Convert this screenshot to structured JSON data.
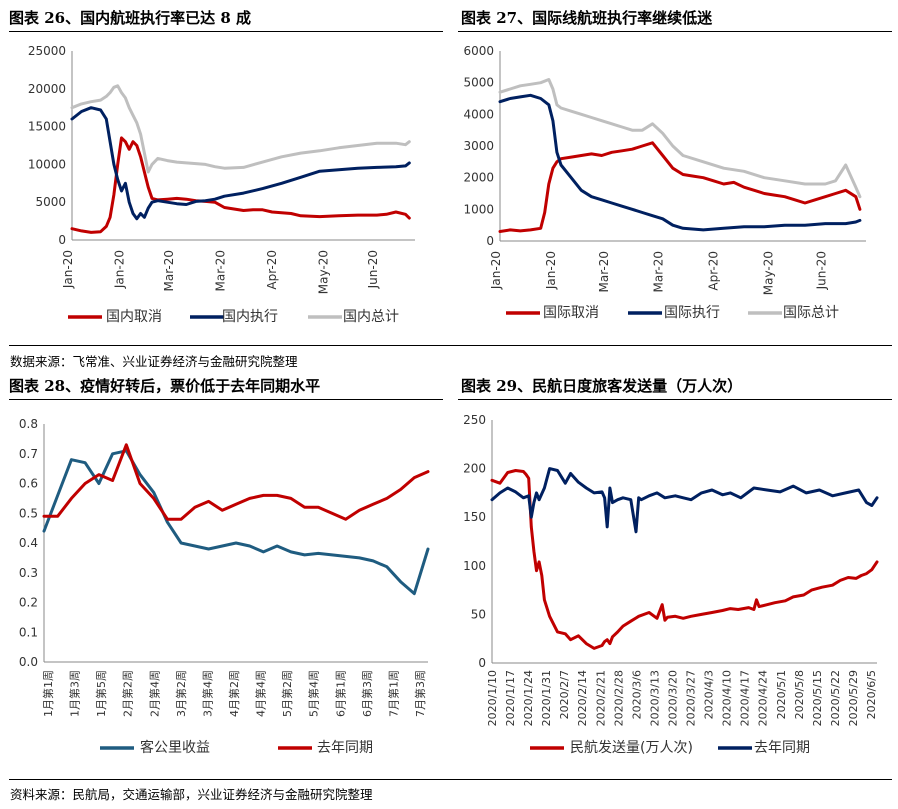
{
  "panels": [
    {
      "title": "图表 26、国内航班执行率已达 8 成"
    },
    {
      "title": "图表 27、国际线航班执行率继续低迷"
    },
    {
      "title": "图表 28、疫情好转后，票价低于去年同期水平"
    },
    {
      "title": "图表 29、民航日度旅客发送量（万人次）"
    }
  ],
  "sources": {
    "top": "数据来源：飞常准、兴业证券经济与金融研究院整理",
    "bottom": "资料来源：民航局，交通运输部，兴业证券经济与金融研究院整理"
  },
  "colors": {
    "red": "#C00000",
    "navy": "#002060",
    "gray": "#BFBFBF",
    "teal": "#1F5C80"
  },
  "chart_data": [
    {
      "type": "line",
      "xticks": [
        "Jan-20",
        "Jan-20",
        "Mar-20",
        "Mar-20",
        "Apr-20",
        "May-20",
        "Jun-20"
      ],
      "ylim": [
        0,
        25000
      ],
      "yticks": [
        "0",
        "5000",
        "10000",
        "15000",
        "20000",
        "25000"
      ],
      "xrange": [
        0,
        180
      ],
      "xtick_pos": [
        0,
        27,
        53,
        80,
        107,
        134,
        160
      ],
      "series": [
        {
          "name": "国内取消",
          "color": "#C00000",
          "x": [
            0,
            5,
            10,
            15,
            18,
            20,
            22,
            24,
            26,
            28,
            30,
            32,
            34,
            36,
            38,
            40,
            42,
            45,
            50,
            55,
            60,
            65,
            70,
            75,
            80,
            85,
            90,
            95,
            100,
            105,
            110,
            115,
            120,
            130,
            140,
            150,
            160,
            165,
            170,
            175,
            177
          ],
          "values": [
            1500,
            1200,
            1000,
            1100,
            1800,
            3000,
            6000,
            10000,
            13500,
            13000,
            12000,
            13000,
            12500,
            11000,
            9000,
            7000,
            5500,
            5300,
            5400,
            5500,
            5400,
            5200,
            5100,
            5000,
            4300,
            4100,
            3900,
            4000,
            4000,
            3700,
            3600,
            3500,
            3200,
            3100,
            3200,
            3300,
            3300,
            3400,
            3700,
            3400,
            2900
          ]
        },
        {
          "name": "国内执行",
          "color": "#002060",
          "x": [
            0,
            5,
            10,
            15,
            18,
            20,
            22,
            24,
            26,
            28,
            30,
            32,
            34,
            36,
            38,
            40,
            42,
            45,
            50,
            55,
            60,
            65,
            70,
            75,
            80,
            90,
            100,
            110,
            120,
            130,
            140,
            150,
            160,
            170,
            175,
            177
          ],
          "values": [
            16000,
            17000,
            17500,
            17200,
            16000,
            13000,
            10000,
            8000,
            6500,
            7500,
            5000,
            3500,
            2800,
            3500,
            3000,
            4200,
            5000,
            5200,
            5000,
            4800,
            4700,
            5100,
            5200,
            5400,
            5800,
            6200,
            6800,
            7500,
            8300,
            9100,
            9300,
            9500,
            9600,
            9700,
            9800,
            10200
          ]
        },
        {
          "name": "国内总计",
          "color": "#BFBFBF",
          "x": [
            0,
            5,
            10,
            15,
            18,
            20,
            22,
            24,
            26,
            28,
            30,
            32,
            34,
            36,
            38,
            40,
            42,
            45,
            50,
            55,
            60,
            65,
            70,
            75,
            80,
            90,
            100,
            110,
            120,
            130,
            140,
            150,
            160,
            170,
            175,
            177
          ],
          "values": [
            17500,
            18000,
            18300,
            18500,
            19000,
            19500,
            20200,
            20400,
            19500,
            18800,
            17500,
            16500,
            15500,
            14000,
            11500,
            9000,
            10000,
            10800,
            10500,
            10300,
            10200,
            10100,
            10000,
            9700,
            9500,
            9600,
            10300,
            11000,
            11500,
            11800,
            12200,
            12500,
            12800,
            12800,
            12600,
            13000
          ]
        }
      ]
    },
    {
      "type": "line",
      "xticks": [
        "Jan-20",
        "Jan-20",
        "Mar-20",
        "Mar-20",
        "Apr-20",
        "May-20",
        "Jun-20"
      ],
      "ylim": [
        0,
        6000
      ],
      "yticks": [
        "0",
        "1000",
        "2000",
        "3000",
        "4000",
        "5000",
        "6000"
      ],
      "xrange": [
        0,
        180
      ],
      "xtick_pos": [
        0,
        27,
        53,
        80,
        107,
        134,
        160
      ],
      "series": [
        {
          "name": "国际取消",
          "color": "#C00000",
          "x": [
            0,
            5,
            10,
            15,
            20,
            22,
            24,
            26,
            28,
            30,
            35,
            40,
            45,
            50,
            55,
            60,
            65,
            70,
            75,
            80,
            85,
            90,
            95,
            100,
            105,
            110,
            115,
            120,
            125,
            130,
            135,
            140,
            145,
            150,
            155,
            160,
            165,
            170,
            175,
            177
          ],
          "values": [
            300,
            350,
            320,
            350,
            400,
            900,
            1800,
            2300,
            2500,
            2600,
            2650,
            2700,
            2750,
            2700,
            2800,
            2850,
            2900,
            3000,
            3100,
            2700,
            2300,
            2100,
            2050,
            2000,
            1900,
            1800,
            1850,
            1700,
            1600,
            1500,
            1450,
            1400,
            1300,
            1200,
            1300,
            1400,
            1500,
            1600,
            1400,
            1000
          ]
        },
        {
          "name": "国际执行",
          "color": "#002060",
          "x": [
            0,
            5,
            10,
            15,
            20,
            24,
            26,
            28,
            30,
            35,
            40,
            45,
            50,
            55,
            60,
            65,
            70,
            75,
            80,
            85,
            90,
            100,
            110,
            120,
            130,
            140,
            150,
            160,
            170,
            175,
            177
          ],
          "values": [
            4400,
            4500,
            4550,
            4600,
            4500,
            4300,
            3800,
            2800,
            2400,
            2000,
            1600,
            1400,
            1300,
            1200,
            1100,
            1000,
            900,
            800,
            700,
            500,
            400,
            350,
            400,
            450,
            450,
            500,
            500,
            550,
            550,
            600,
            650
          ]
        },
        {
          "name": "国际总计",
          "color": "#BFBFBF",
          "x": [
            0,
            5,
            10,
            15,
            20,
            24,
            26,
            28,
            30,
            35,
            40,
            45,
            50,
            55,
            60,
            65,
            70,
            75,
            80,
            85,
            90,
            100,
            110,
            120,
            130,
            140,
            150,
            160,
            165,
            170,
            175,
            177
          ],
          "values": [
            4700,
            4800,
            4900,
            4950,
            5000,
            5100,
            4800,
            4300,
            4200,
            4100,
            4000,
            3900,
            3800,
            3700,
            3600,
            3500,
            3500,
            3700,
            3400,
            3000,
            2700,
            2500,
            2300,
            2200,
            2000,
            1900,
            1800,
            1800,
            1900,
            2400,
            1700,
            1400
          ]
        }
      ]
    },
    {
      "type": "line",
      "xticks": [
        "1月第1周",
        "1月第3周",
        "1月第5周",
        "2月第2周",
        "2月第4周",
        "3月第2周",
        "3月第4周",
        "4月第2周",
        "4月第4周",
        "5月第2周",
        "5月第4周",
        "6月第1周",
        "6月第3周",
        "7月第1周",
        "7月第3周"
      ],
      "ylim": [
        0,
        0.8
      ],
      "yticks": [
        "0.0",
        "0.1",
        "0.2",
        "0.3",
        "0.4",
        "0.5",
        "0.6",
        "0.7",
        "0.8"
      ],
      "xrange": [
        0,
        14
      ],
      "series": [
        {
          "name": "客公里收益",
          "color": "#1F5C80",
          "x": [
            0,
            0.5,
            1,
            1.5,
            2,
            2.5,
            3,
            3.5,
            4,
            4.5,
            5,
            5.5,
            6,
            6.5,
            7,
            7.5,
            8,
            8.5,
            9,
            9.5,
            10,
            10.5,
            11,
            11.5,
            12,
            12.5,
            13,
            13.5,
            14
          ],
          "values": [
            0.44,
            0.56,
            0.68,
            0.67,
            0.6,
            0.7,
            0.71,
            0.63,
            0.57,
            0.47,
            0.4,
            0.39,
            0.38,
            0.39,
            0.4,
            0.39,
            0.37,
            0.39,
            0.37,
            0.36,
            0.365,
            0.36,
            0.355,
            0.35,
            0.34,
            0.32,
            0.27,
            0.23,
            0.38
          ]
        },
        {
          "name": "去年同期",
          "color": "#C00000",
          "x": [
            0,
            0.5,
            1,
            1.5,
            2,
            2.5,
            3,
            3.5,
            4,
            4.5,
            5,
            5.5,
            6,
            6.5,
            7,
            7.5,
            8,
            8.5,
            9,
            9.5,
            10,
            10.5,
            11,
            11.5,
            12,
            12.5,
            13,
            13.5,
            14
          ],
          "values": [
            0.49,
            0.49,
            0.55,
            0.6,
            0.63,
            0.61,
            0.73,
            0.6,
            0.55,
            0.48,
            0.48,
            0.52,
            0.54,
            0.51,
            0.53,
            0.55,
            0.56,
            0.56,
            0.55,
            0.52,
            0.52,
            0.5,
            0.48,
            0.51,
            0.53,
            0.55,
            0.58,
            0.62,
            0.64
          ]
        }
      ]
    },
    {
      "type": "line",
      "xticks": [
        "2020/1/10",
        "2020/1/17",
        "2020/1/24",
        "2020/1/31",
        "2020/2/7",
        "2020/2/14",
        "2020/2/21",
        "2020/2/28",
        "2020/3/6",
        "2020/3/13",
        "2020/3/20",
        "2020/3/27",
        "2020/4/3",
        "2020/4/10",
        "2020/4/17",
        "2020/4/24",
        "2020/5/1",
        "2020/5/8",
        "2020/5/15",
        "2020/5/22",
        "2020/5/29",
        "2020/6/5"
      ],
      "ylim": [
        0,
        250
      ],
      "yticks": [
        "0",
        "50",
        "100",
        "150",
        "200",
        "250"
      ],
      "xrange": [
        0,
        147
      ],
      "series": [
        {
          "name": "民航发送量(万人次)",
          "color": "#C00000",
          "x": [
            0,
            3,
            6,
            9,
            12,
            13,
            14,
            15,
            16,
            17,
            18,
            19,
            20,
            22,
            25,
            28,
            30,
            33,
            36,
            39,
            42,
            43,
            44,
            45,
            46,
            48,
            50,
            53,
            56,
            60,
            63,
            65,
            66,
            67,
            70,
            73,
            76,
            80,
            84,
            88,
            91,
            94,
            98,
            100,
            101,
            102,
            105,
            108,
            112,
            115,
            119,
            122,
            126,
            130,
            133,
            136,
            139,
            141,
            143,
            145,
            147
          ],
          "values": [
            188,
            185,
            196,
            198,
            197,
            194,
            190,
            140,
            115,
            95,
            104,
            90,
            65,
            48,
            32,
            30,
            24,
            28,
            20,
            15,
            18,
            22,
            24,
            20,
            27,
            32,
            38,
            43,
            48,
            52,
            46,
            60,
            44,
            47,
            48,
            46,
            48,
            50,
            52,
            54,
            56,
            55,
            57,
            55,
            65,
            58,
            60,
            62,
            64,
            68,
            70,
            75,
            78,
            80,
            85,
            88,
            87,
            90,
            92,
            96,
            104
          ]
        },
        {
          "name": "去年同期",
          "color": "#002060",
          "x": [
            0,
            3,
            6,
            9,
            12,
            14,
            15,
            16,
            17,
            18,
            20,
            22,
            25,
            28,
            30,
            33,
            36,
            39,
            42,
            43,
            44,
            45,
            46,
            48,
            50,
            53,
            55,
            56,
            57,
            60,
            63,
            66,
            70,
            73,
            76,
            80,
            84,
            88,
            91,
            95,
            100,
            105,
            110,
            115,
            120,
            125,
            130,
            135,
            140,
            143,
            145,
            147
          ],
          "values": [
            168,
            175,
            180,
            176,
            170,
            172,
            150,
            165,
            175,
            168,
            180,
            200,
            198,
            185,
            195,
            186,
            180,
            175,
            176,
            170,
            140,
            180,
            165,
            168,
            170,
            168,
            135,
            170,
            168,
            172,
            175,
            170,
            172,
            170,
            168,
            175,
            178,
            173,
            175,
            170,
            180,
            178,
            176,
            182,
            175,
            178,
            172,
            175,
            178,
            165,
            162,
            170
          ]
        }
      ]
    }
  ]
}
